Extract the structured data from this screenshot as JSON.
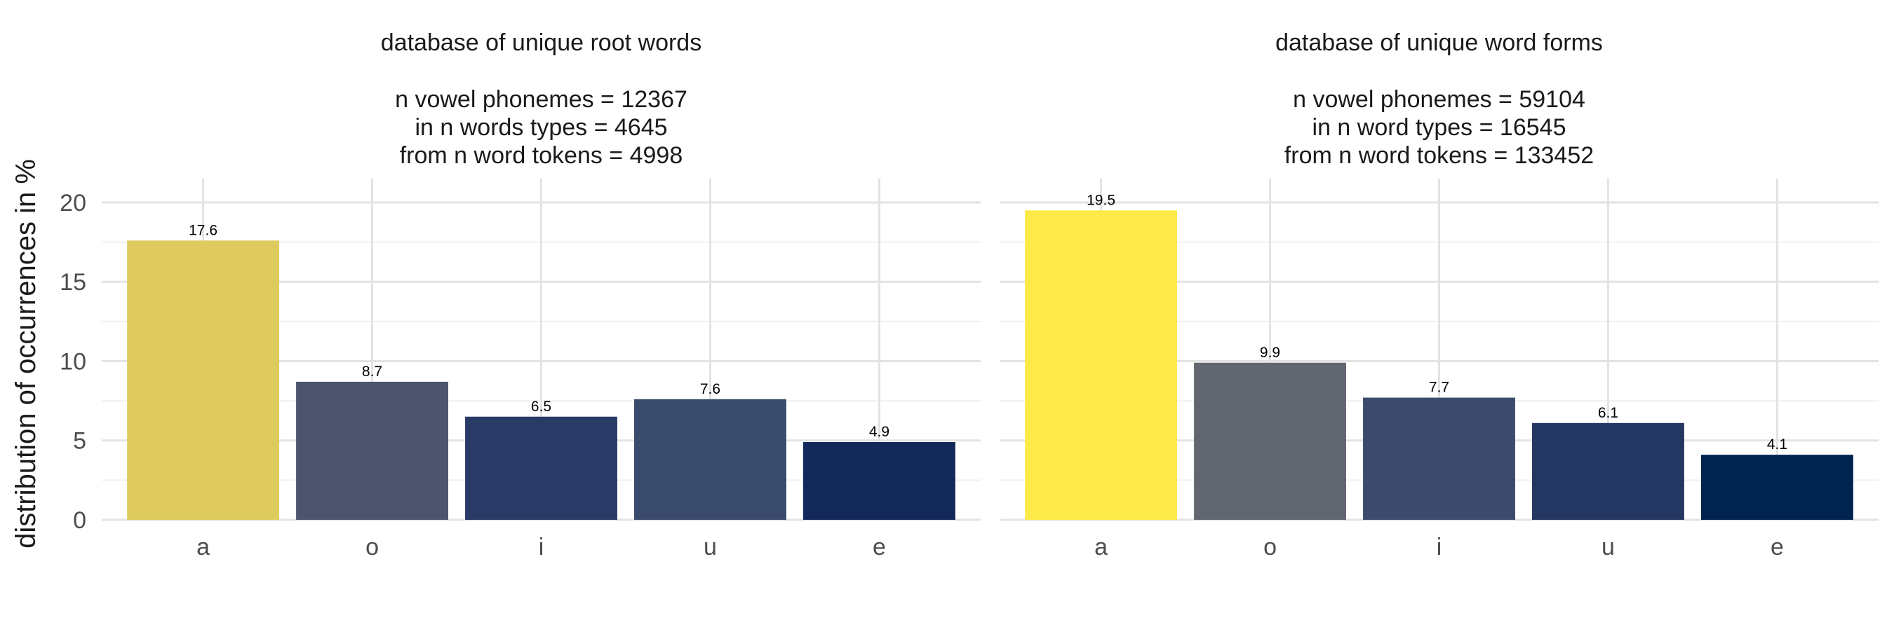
{
  "ylabel": "distribution of occurrences in %",
  "chart_data": [
    {
      "type": "bar",
      "title": "database of unique root words",
      "subtitle_lines": [
        "n vowel phonemes = 12367",
        "in n words types = 4645",
        "from n word tokens = 4998"
      ],
      "categories": [
        "a",
        "o",
        "i",
        "u",
        "e"
      ],
      "values": [
        17.6,
        8.7,
        6.5,
        7.6,
        4.9
      ],
      "value_labels": [
        "17.6",
        "8.7",
        "6.5",
        "7.6",
        "4.9"
      ],
      "colors": [
        "#DFCB5D",
        "#4C556D",
        "#283A65",
        "#3A4A6C",
        "#13295A"
      ],
      "ylim": [
        0,
        21.5
      ],
      "yticks": [
        0,
        5,
        10,
        15,
        20
      ],
      "ytick_labels": [
        "0",
        "5",
        "10",
        "15",
        "20"
      ],
      "grid": true
    },
    {
      "type": "bar",
      "title": "database of unique word forms",
      "subtitle_lines": [
        "n vowel phonemes = 59104",
        "in n word types = 16545",
        "from n word tokens = 133452"
      ],
      "categories": [
        "a",
        "o",
        "i",
        "u",
        "e"
      ],
      "values": [
        19.5,
        9.9,
        7.7,
        6.1,
        4.1
      ],
      "value_labels": [
        "19.5",
        "9.9",
        "7.7",
        "6.1",
        "4.1"
      ],
      "colors": [
        "#FDE948",
        "#626670",
        "#3B4A6D",
        "#243662",
        "#00234F"
      ],
      "ylim": [
        0,
        21.5
      ],
      "yticks": [
        0,
        5,
        10,
        15,
        20
      ],
      "ytick_labels": [],
      "grid": true
    }
  ]
}
